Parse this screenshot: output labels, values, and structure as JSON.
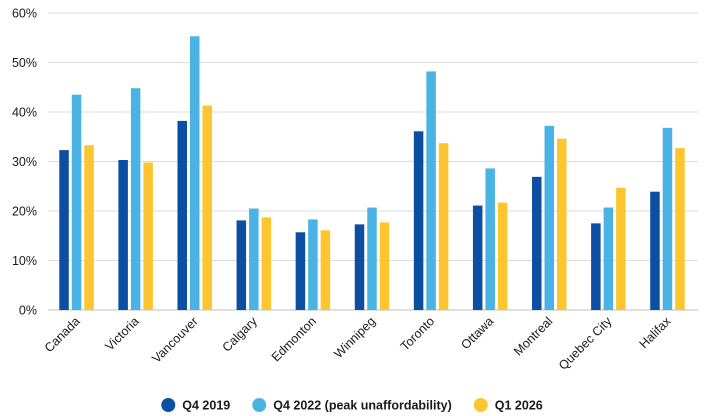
{
  "chart_data": {
    "type": "bar",
    "categories": [
      "Canada",
      "Victoria",
      "Vancouver",
      "Calgary",
      "Edmonton",
      "Winnipeg",
      "Toronto",
      "Ottawa",
      "Montreal",
      "Quebec City",
      "Halifax"
    ],
    "series": [
      {
        "name": "Q4 2019",
        "color": "#0b4ea2",
        "values": [
          32.3,
          30.3,
          38.2,
          18.1,
          15.7,
          17.3,
          36.1,
          21.1,
          26.9,
          17.5,
          23.9
        ]
      },
      {
        "name": "Q4 2022 (peak unaffordability)",
        "color": "#4ab3e3",
        "values": [
          43.5,
          44.8,
          55.3,
          20.5,
          18.3,
          20.7,
          48.2,
          28.6,
          37.2,
          20.7,
          36.8
        ]
      },
      {
        "name": "Q1 2026",
        "color": "#fdc52f",
        "values": [
          33.3,
          29.8,
          41.3,
          18.7,
          16.1,
          17.7,
          33.7,
          21.7,
          34.6,
          24.7,
          32.7
        ]
      }
    ],
    "y_ticks": [
      "0%",
      "10%",
      "20%",
      "30%",
      "40%",
      "50%",
      "60%"
    ],
    "ylim": [
      0,
      60
    ],
    "grid": true,
    "legend": "bottom-center",
    "title": "",
    "xlabel": "",
    "ylabel": ""
  }
}
